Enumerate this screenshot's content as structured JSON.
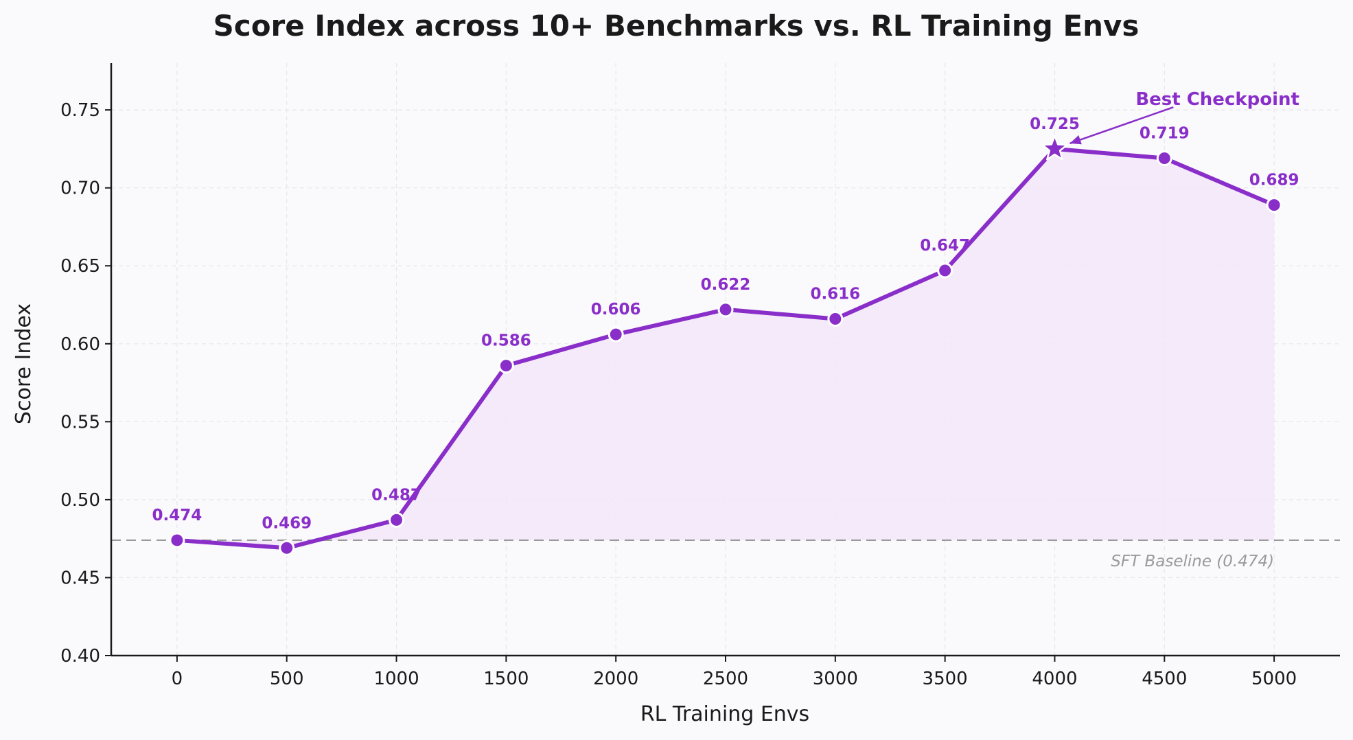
{
  "chart_data": {
    "type": "line",
    "title": "Score Index across 10+ Benchmarks vs. RL Training Envs",
    "xlabel": "RL Training Envs",
    "ylabel": "Score Index",
    "x": [
      0,
      500,
      1000,
      1500,
      2000,
      2500,
      3000,
      3500,
      4000,
      4500,
      5000
    ],
    "series": [
      {
        "values": [
          0.474,
          0.469,
          0.487,
          0.586,
          0.606,
          0.622,
          0.616,
          0.647,
          0.725,
          0.719,
          0.689
        ],
        "labels": [
          "0.474",
          "0.469",
          "0.487",
          "0.586",
          "0.606",
          "0.622",
          "0.616",
          "0.647",
          "0.725",
          "0.719",
          "0.689"
        ],
        "color": "#8a2ec9",
        "fill_color": "#f2e6f9"
      }
    ],
    "xlim": [
      -300,
      5300
    ],
    "ylim": [
      0.4,
      0.78
    ],
    "xticks": [
      0,
      500,
      1000,
      1500,
      2000,
      2500,
      3000,
      3500,
      4000,
      4500,
      5000
    ],
    "xtick_labels": [
      "0",
      "500",
      "1000",
      "1500",
      "2000",
      "2500",
      "3000",
      "3500",
      "4000",
      "4500",
      "5000"
    ],
    "yticks": [
      0.4,
      0.45,
      0.5,
      0.55,
      0.6,
      0.65,
      0.7,
      0.75
    ],
    "ytick_labels": [
      "0.40",
      "0.45",
      "0.50",
      "0.55",
      "0.60",
      "0.65",
      "0.70",
      "0.75"
    ],
    "grid": true,
    "baseline": {
      "value": 0.474,
      "label": "SFT Baseline (0.474)",
      "color": "#9a9a9a"
    },
    "annotation": {
      "text": "Best Checkpoint",
      "x": 4000,
      "y": 0.725,
      "text_x": 4400,
      "text_y": 0.757,
      "marker": "star"
    }
  }
}
